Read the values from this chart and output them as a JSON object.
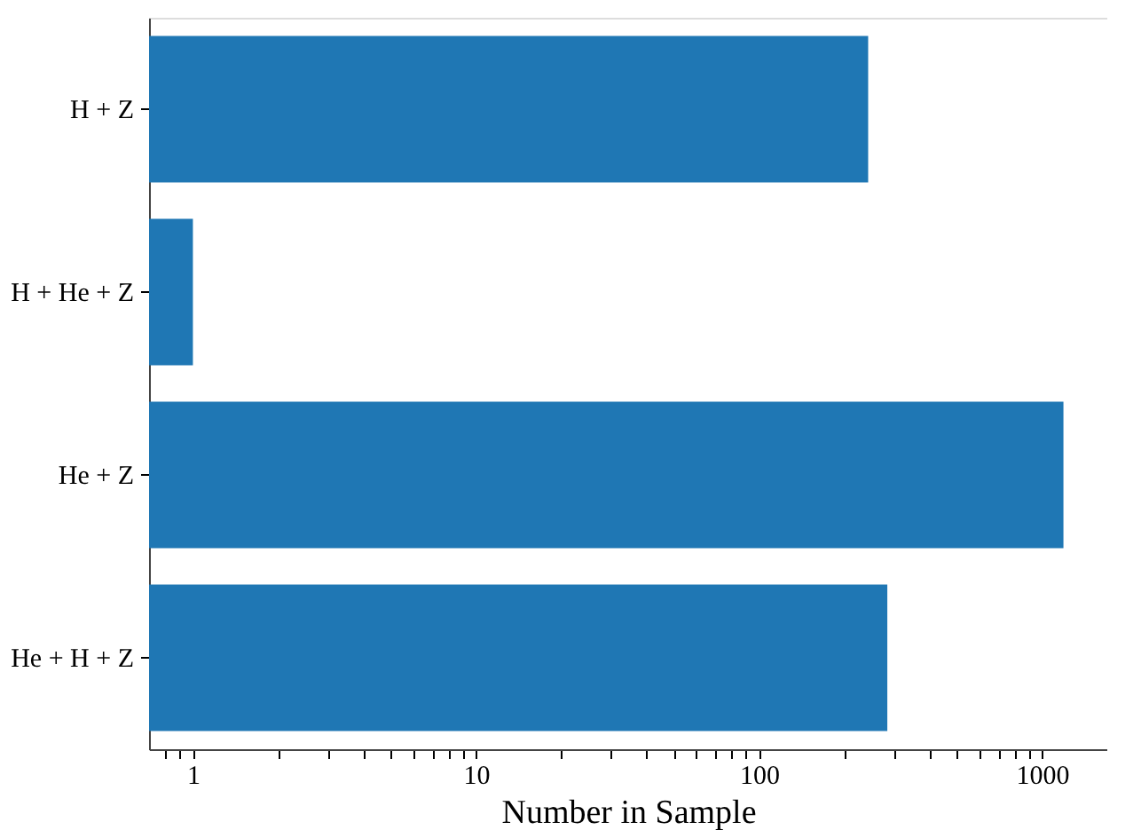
{
  "chart_data": {
    "type": "bar",
    "orientation": "horizontal",
    "log": "x",
    "xlabel": "Number in Sample",
    "categories": [
      "H + Z",
      "H + He + Z",
      "He + Z",
      "He + H + Z"
    ],
    "values": [
      243,
      1,
      1190,
      284
    ],
    "color": "#1f77b4",
    "xlim": [
      0.7,
      1700
    ],
    "xticks": [
      {
        "value": 0.8,
        "label": null
      },
      {
        "value": 0.9,
        "label": null
      },
      1,
      {
        "value": 2,
        "label": null
      },
      {
        "value": 3,
        "label": null
      },
      {
        "value": 4,
        "label": null
      },
      {
        "value": 5,
        "label": null
      },
      {
        "value": 6,
        "label": null
      },
      {
        "value": 7,
        "label": null
      },
      {
        "value": 8,
        "label": null
      },
      {
        "value": 9,
        "label": null
      },
      10,
      {
        "value": 20,
        "label": null
      },
      {
        "value": 30,
        "label": null
      },
      {
        "value": 40,
        "label": null
      },
      {
        "value": 50,
        "label": null
      },
      {
        "value": 60,
        "label": null
      },
      {
        "value": 70,
        "label": null
      },
      {
        "value": 80,
        "label": null
      },
      {
        "value": 90,
        "label": null
      },
      100,
      {
        "value": 200,
        "label": null
      },
      {
        "value": 300,
        "label": null
      },
      {
        "value": 400,
        "label": null
      },
      {
        "value": 500,
        "label": null
      },
      {
        "value": 600,
        "label": null
      },
      {
        "value": 700,
        "label": null
      },
      {
        "value": 800,
        "label": null
      },
      {
        "value": 900,
        "label": null
      },
      1000
    ],
    "grid": false
  }
}
